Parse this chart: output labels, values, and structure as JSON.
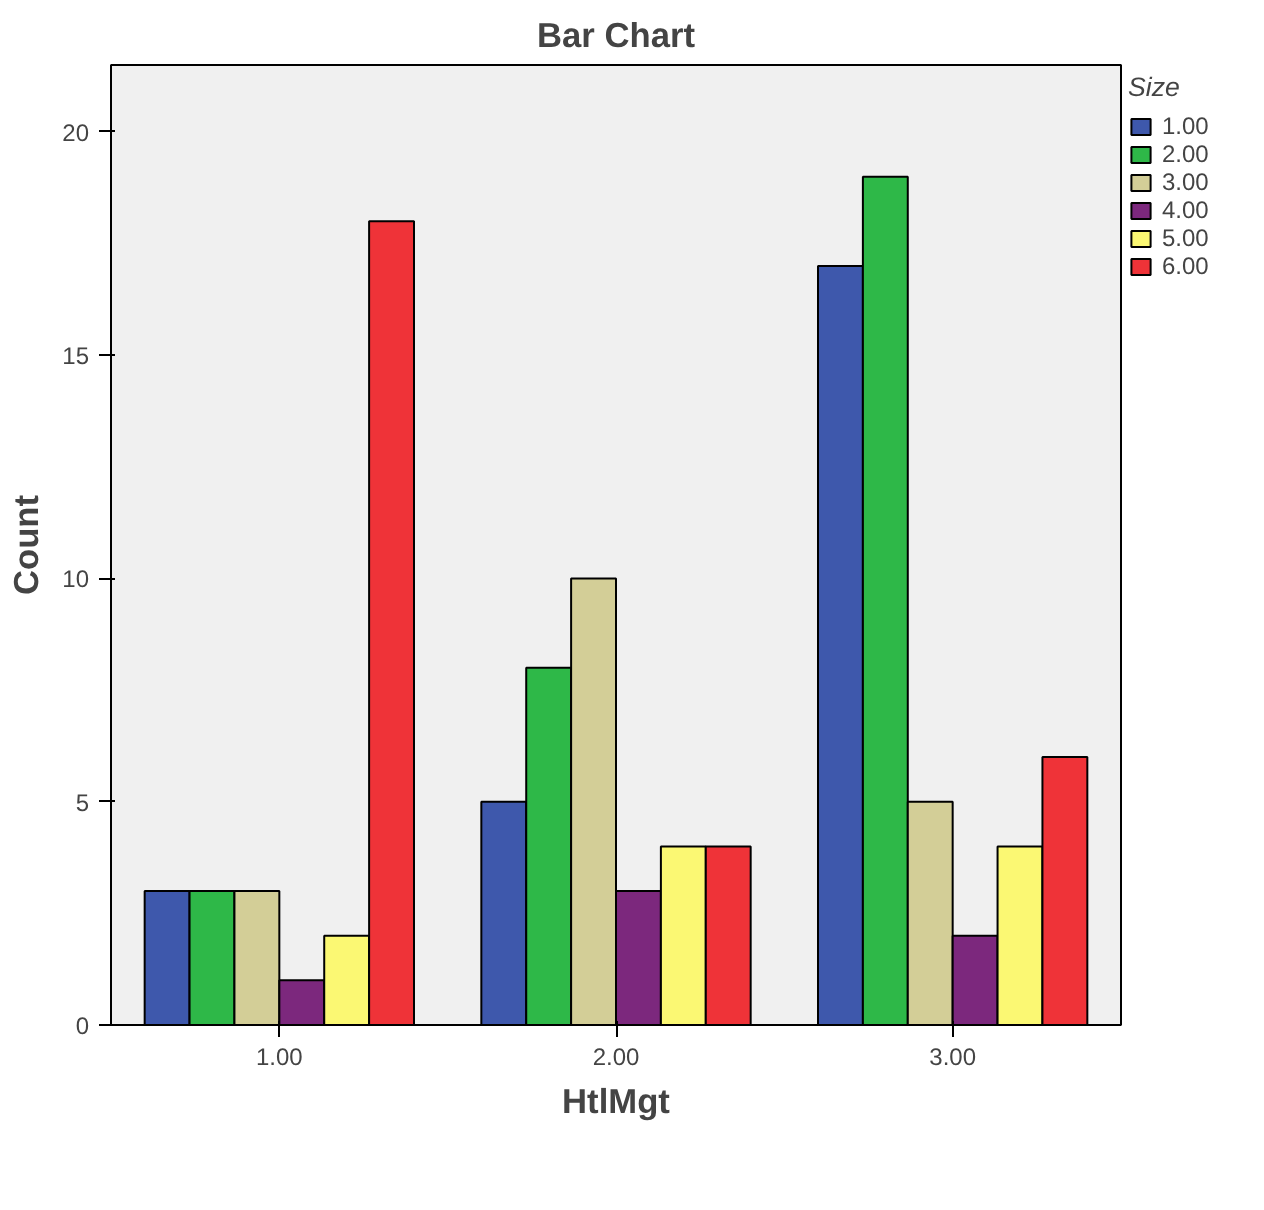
{
  "chart_data": {
    "type": "bar",
    "title": "Bar Chart",
    "xlabel": "HtlMgt",
    "ylabel": "Count",
    "legend_title": "Size",
    "categories": [
      "1.00",
      "2.00",
      "3.00"
    ],
    "series": [
      {
        "name": "1.00",
        "color": "#3e58ac",
        "values": [
          3,
          5,
          17
        ]
      },
      {
        "name": "2.00",
        "color": "#2eb848",
        "values": [
          3,
          8,
          19
        ]
      },
      {
        "name": "3.00",
        "color": "#d3ce97",
        "values": [
          3,
          10,
          5
        ]
      },
      {
        "name": "4.00",
        "color": "#7c287d",
        "values": [
          1,
          3,
          2
        ]
      },
      {
        "name": "5.00",
        "color": "#fbf873",
        "values": [
          2,
          4,
          4
        ]
      },
      {
        "name": "6.00",
        "color": "#ef3338",
        "values": [
          18,
          4,
          6
        ]
      }
    ],
    "ylim": [
      0,
      21.5
    ],
    "yticks": [
      0,
      5,
      10,
      15,
      20
    ],
    "grid": false,
    "legend": "right"
  }
}
